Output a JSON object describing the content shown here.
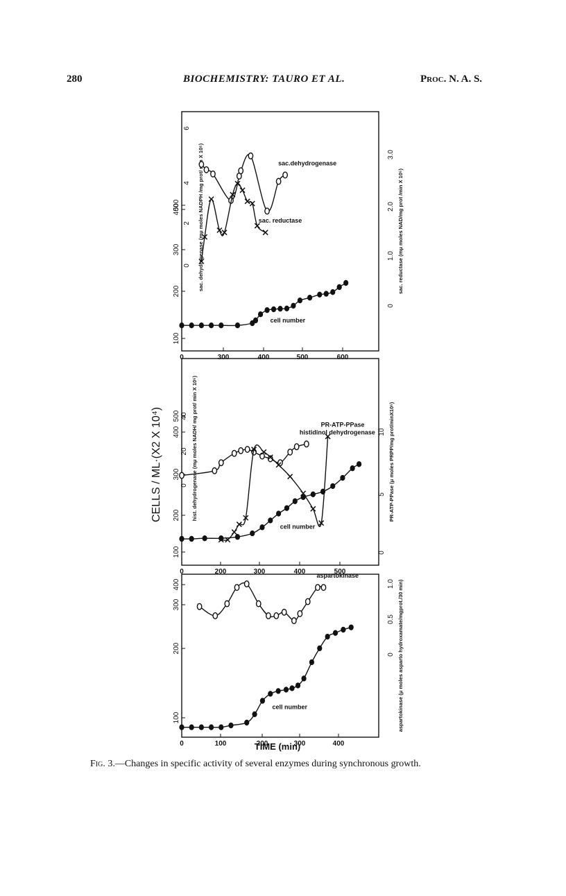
{
  "header": {
    "page_number": "280",
    "title": "BIOCHEMISTRY: TAURO ET AL.",
    "journal": "Proc. N. A. S."
  },
  "figure": {
    "ylabel_shared": "CELLS / ML·(X2 X 10⁴)",
    "xlabel_shared": "TIME (min)",
    "caption_label": "Fig. 3.",
    "caption_text": "—Changes in specific activity of several enzymes during synchronous growth."
  },
  "chart_data": [
    {
      "type": "line",
      "panel": "top",
      "xlim": [
        0,
        600
      ],
      "x_ticks": [
        "0",
        "300",
        "400",
        "500",
        "600"
      ],
      "cells_ylim": [
        100,
        600
      ],
      "cells_ticks": [
        "100",
        "200",
        "300",
        "400",
        "500"
      ],
      "left_enzyme_ylabel": "sac. dehydrogenase (mμ moles NADPH /mg prot/ min X 10⁵)",
      "left_enzyme_ticks": [
        "0",
        "2",
        "4",
        "6"
      ],
      "left_enzyme_ylim": [
        0,
        6.5
      ],
      "right_ylabel": "sac. reductase (mμ moles NAD/mg prot /min X 10⁵)",
      "right_ticks": [
        "0",
        "1.0",
        "2.0",
        "3.0"
      ],
      "right_ylim": [
        0,
        3.4
      ],
      "grid": false,
      "series": [
        {
          "name": "cell number",
          "axis": "cells",
          "marker": "filled-circle",
          "x": [
            0,
            30,
            60,
            90,
            120,
            170,
            215,
            225,
            240,
            260,
            280,
            300,
            320,
            340,
            360,
            390,
            420,
            440,
            460,
            480,
            500
          ],
          "values": [
            142,
            142,
            142,
            142,
            142,
            142,
            150,
            160,
            182,
            197,
            200,
            202,
            203,
            213,
            232,
            242,
            253,
            256,
            262,
            280,
            295
          ]
        },
        {
          "name": "sac.dehydrogenase",
          "axis": "left_enzyme",
          "marker": "open-circle",
          "x": [
            60,
            75,
            95,
            150,
            175,
            180,
            210,
            260,
            295,
            315
          ],
          "values": [
            4.8,
            4.55,
            4.35,
            3.1,
            4.25,
            4.5,
            5.2,
            2.6,
            4.0,
            4.3
          ]
        },
        {
          "name": "sac. reductase",
          "axis": "right",
          "marker": "x",
          "x": [
            60,
            70,
            90,
            115,
            130,
            155,
            170,
            185,
            200,
            215,
            230,
            255
          ],
          "values": [
            1.0,
            1.55,
            2.4,
            1.7,
            1.65,
            2.5,
            2.75,
            2.6,
            2.35,
            2.3,
            1.8,
            1.65
          ]
        }
      ]
    },
    {
      "type": "line",
      "panel": "middle",
      "xlim": [
        0,
        600
      ],
      "x_ticks": [
        "0",
        "200",
        "300",
        "400",
        "500"
      ],
      "cells_ylim": [
        100,
        600
      ],
      "cells_ticks": [
        "100",
        "200",
        "300",
        "400",
        "500"
      ],
      "left_enzyme_ylabel": "hist. dehydrogenase (mμ moles NADH/ mg prot/ min X 10⁵)",
      "left_enzyme_ticks": [
        "0",
        "20",
        "40"
      ],
      "left_enzyme_ylim": [
        0,
        55
      ],
      "right_ylabel": "PR-ATP-PPase (μ moles PRPP/mg prot/minX10⁵)",
      "right_ticks": [
        "0",
        "5",
        "10"
      ],
      "right_ylim": [
        0,
        13
      ],
      "grid": false,
      "series": [
        {
          "name": "cell number",
          "axis": "cells",
          "marker": "filled-circle",
          "x": [
            0,
            30,
            70,
            120,
            170,
            215,
            245,
            270,
            295,
            320,
            345,
            370,
            400,
            430,
            460,
            490,
            520,
            540
          ],
          "values": [
            148,
            148,
            150,
            150,
            155,
            168,
            190,
            215,
            240,
            260,
            285,
            300,
            310,
            320,
            340,
            370,
            405,
            420
          ]
        },
        {
          "name": "histidinol dehydrogenase",
          "axis": "left_enzyme",
          "marker": "open-circle",
          "x": [
            0,
            100,
            120,
            160,
            180,
            200,
            220,
            245,
            270,
            300,
            330,
            350,
            380
          ],
          "values": [
            7.5,
            11,
            17,
            24,
            26,
            27,
            25,
            22,
            20,
            17,
            25,
            29,
            31
          ]
        },
        {
          "name": "PR-ATP-PPase",
          "axis": "right",
          "marker": "x",
          "x": [
            120,
            140,
            160,
            175,
            195,
            220,
            250,
            270,
            295,
            330,
            370,
            400,
            425,
            445
          ],
          "values": [
            1.0,
            1.0,
            1.6,
            2.2,
            2.7,
            8.0,
            7.8,
            7.4,
            6.8,
            5.9,
            4.6,
            3.4,
            2.3,
            9.0
          ]
        }
      ]
    },
    {
      "type": "line",
      "panel": "bottom",
      "xlim": [
        0,
        500
      ],
      "x_ticks": [
        "0",
        "100",
        "200",
        "300",
        "400"
      ],
      "cells_ylim": [
        100,
        400
      ],
      "cells_ticks": [
        "100",
        "200",
        "300",
        "400"
      ],
      "right_ylabel": "aspartokinase (μ moles asparto hydroxamate/mgprot./30 min)",
      "right_ticks": [
        "0",
        "0.5",
        "1.0"
      ],
      "right_ylim": [
        0,
        1.0
      ],
      "grid": false,
      "series": [
        {
          "name": "cell number",
          "axis": "cells",
          "marker": "filled-circle",
          "x": [
            0,
            25,
            50,
            75,
            100,
            125,
            165,
            185,
            205,
            225,
            245,
            265,
            280,
            295,
            310,
            330,
            350,
            370,
            390,
            410,
            430
          ],
          "values": [
            90,
            90,
            90,
            90,
            90,
            94,
            100,
            118,
            147,
            162,
            168,
            171,
            174,
            180,
            195,
            230,
            260,
            285,
            293,
            300,
            305
          ]
        },
        {
          "name": "aspartokinase",
          "axis": "right",
          "marker": "open-circle",
          "x": [
            45,
            85,
            115,
            140,
            165,
            195,
            220,
            240,
            260,
            285,
            300,
            320,
            345,
            360
          ],
          "values": [
            0.68,
            0.55,
            0.72,
            0.95,
            1.0,
            0.72,
            0.55,
            0.55,
            0.6,
            0.48,
            0.58,
            0.75,
            0.95,
            0.95
          ]
        }
      ]
    }
  ]
}
